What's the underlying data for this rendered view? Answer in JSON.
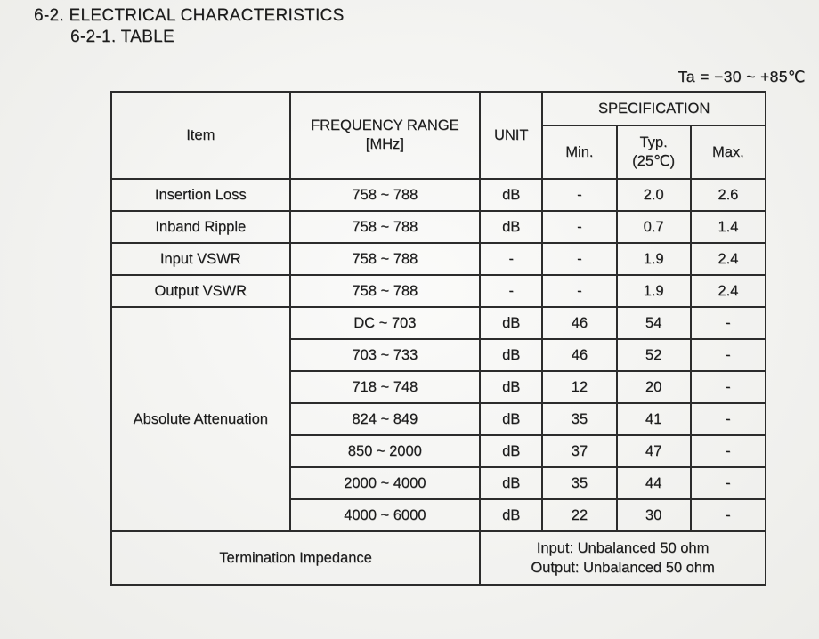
{
  "page": {
    "section_title": "6-2. ELECTRICAL CHARACTERISTICS",
    "subsection_title": "6-2-1. TABLE",
    "temperature_note": "Ta = −30 ~ +85℃"
  },
  "table": {
    "header": {
      "item": "Item",
      "frequency_range_line1": "FREQUENCY RANGE",
      "frequency_range_line2": "[MHz]",
      "unit": "UNIT",
      "specification": "SPECIFICATION",
      "min": "Min.",
      "typ_line1": "Typ.",
      "typ_line2": "(25℃)",
      "max": "Max."
    },
    "rows": [
      {
        "item": "Insertion Loss",
        "frequency": "758 ~ 788",
        "unit": "dB",
        "min": "-",
        "typ": "2.0",
        "max": "2.6"
      },
      {
        "item": "Inband Ripple",
        "frequency": "758 ~ 788",
        "unit": "dB",
        "min": "-",
        "typ": "0.7",
        "max": "1.4"
      },
      {
        "item": "Input VSWR",
        "frequency": "758 ~ 788",
        "unit": "-",
        "min": "-",
        "typ": "1.9",
        "max": "2.4"
      },
      {
        "item": "Output VSWR",
        "frequency": "758 ~ 788",
        "unit": "-",
        "min": "-",
        "typ": "1.9",
        "max": "2.4"
      }
    ],
    "attenuation": {
      "item": "Absolute Attenuation",
      "rows": [
        {
          "frequency": "DC ~ 703",
          "unit": "dB",
          "min": "46",
          "typ": "54",
          "max": "-"
        },
        {
          "frequency": "703 ~ 733",
          "unit": "dB",
          "min": "46",
          "typ": "52",
          "max": "-"
        },
        {
          "frequency": "718 ~ 748",
          "unit": "dB",
          "min": "12",
          "typ": "20",
          "max": "-"
        },
        {
          "frequency": "824 ~ 849",
          "unit": "dB",
          "min": "35",
          "typ": "41",
          "max": "-"
        },
        {
          "frequency": "850 ~ 2000",
          "unit": "dB",
          "min": "37",
          "typ": "47",
          "max": "-"
        },
        {
          "frequency": "2000 ~ 4000",
          "unit": "dB",
          "min": "35",
          "typ": "44",
          "max": "-"
        },
        {
          "frequency": "4000 ~ 6000",
          "unit": "dB",
          "min": "22",
          "typ": "30",
          "max": "-"
        }
      ]
    },
    "termination": {
      "label": "Termination Impedance",
      "input": "Input: Unbalanced 50 ohm",
      "output": "Output: Unbalanced 50 ohm"
    }
  },
  "colors": {
    "text": "#1b1b1b",
    "border": "#2c2c2c",
    "background": "#f3f3f0"
  }
}
